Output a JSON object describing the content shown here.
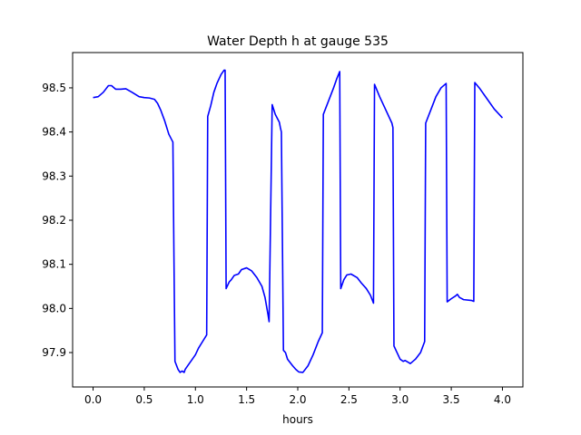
{
  "chart_data": {
    "type": "line",
    "title": "Water Depth h at gauge 535",
    "xlabel": "hours",
    "ylabel": "",
    "xlim": [
      -0.2,
      4.2
    ],
    "ylim": [
      97.822,
      98.58
    ],
    "xticks": [
      0.0,
      0.5,
      1.0,
      1.5,
      2.0,
      2.5,
      3.0,
      3.5,
      4.0
    ],
    "xtick_labels": [
      "0.0",
      "0.5",
      "1.0",
      "1.5",
      "2.0",
      "2.5",
      "3.0",
      "3.5",
      "4.0"
    ],
    "yticks": [
      97.9,
      98.0,
      98.1,
      98.2,
      98.3,
      98.4,
      98.5
    ],
    "ytick_labels": [
      "97.9",
      "98.0",
      "98.1",
      "98.2",
      "98.3",
      "98.4",
      "98.5"
    ],
    "grid": false,
    "series": [
      {
        "name": "",
        "color": "#0000ff",
        "x": [
          0.0,
          0.05,
          0.1,
          0.15,
          0.18,
          0.22,
          0.27,
          0.32,
          0.38,
          0.45,
          0.5,
          0.55,
          0.6,
          0.63,
          0.66,
          0.7,
          0.74,
          0.78,
          0.79,
          0.8,
          0.83,
          0.85,
          0.87,
          0.89,
          0.9,
          0.93,
          0.97,
          1.0,
          1.03,
          1.07,
          1.11,
          1.12,
          1.15,
          1.18,
          1.21,
          1.25,
          1.28,
          1.29,
          1.3,
          1.33,
          1.35,
          1.38,
          1.42,
          1.45,
          1.5,
          1.55,
          1.6,
          1.65,
          1.68,
          1.71,
          1.72,
          1.75,
          1.78,
          1.82,
          1.83,
          1.84,
          1.86,
          1.88,
          1.9,
          1.95,
          1.98,
          2.01,
          2.05,
          2.1,
          2.15,
          2.2,
          2.24,
          2.25,
          2.3,
          2.35,
          2.38,
          2.41,
          2.42,
          2.45,
          2.48,
          2.52,
          2.58,
          2.62,
          2.67,
          2.71,
          2.74,
          2.75,
          2.8,
          2.85,
          2.92,
          2.93,
          2.94,
          2.97,
          3.0,
          3.03,
          3.05,
          3.1,
          3.15,
          3.2,
          3.24,
          3.25,
          3.3,
          3.35,
          3.4,
          3.45,
          3.46,
          3.5,
          3.54,
          3.56,
          3.58,
          3.62,
          3.7,
          3.72,
          3.73,
          3.78,
          3.85,
          3.92,
          4.0
        ],
        "y": [
          98.478,
          98.48,
          98.49,
          98.505,
          98.505,
          98.497,
          98.497,
          98.498,
          98.49,
          98.48,
          98.478,
          98.477,
          98.474,
          98.465,
          98.45,
          98.425,
          98.395,
          98.377,
          98.12,
          97.88,
          97.862,
          97.855,
          97.858,
          97.855,
          97.862,
          97.872,
          97.885,
          97.895,
          97.91,
          97.925,
          97.94,
          98.435,
          98.46,
          98.49,
          98.51,
          98.53,
          98.54,
          98.54,
          98.045,
          98.06,
          98.065,
          98.075,
          98.078,
          98.088,
          98.092,
          98.085,
          98.07,
          98.05,
          98.025,
          97.985,
          97.97,
          98.462,
          98.44,
          98.422,
          98.41,
          98.4,
          97.905,
          97.9,
          97.885,
          97.87,
          97.862,
          97.856,
          97.855,
          97.87,
          97.895,
          97.925,
          97.945,
          98.44,
          98.47,
          98.5,
          98.52,
          98.537,
          98.045,
          98.065,
          98.076,
          98.078,
          98.07,
          98.058,
          98.045,
          98.03,
          98.012,
          98.508,
          98.48,
          98.455,
          98.42,
          98.41,
          97.915,
          97.9,
          97.885,
          97.88,
          97.882,
          97.875,
          97.885,
          97.9,
          97.925,
          98.42,
          98.45,
          98.48,
          98.5,
          98.51,
          98.015,
          98.022,
          98.028,
          98.032,
          98.025,
          98.02,
          98.018,
          98.016,
          98.512,
          98.498,
          98.475,
          98.452,
          98.432
        ]
      }
    ]
  }
}
